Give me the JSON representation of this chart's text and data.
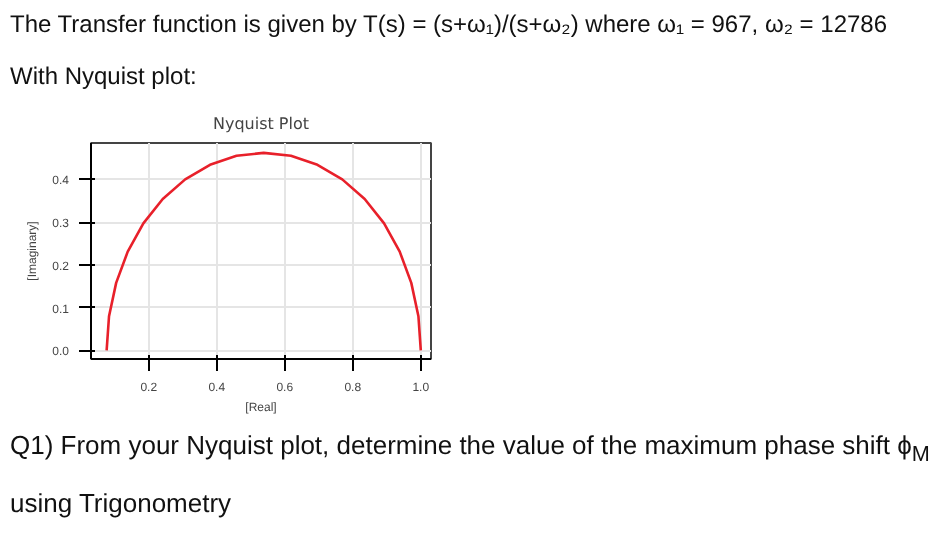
{
  "chart_data": {
    "type": "line",
    "title": "Nyquist Plot",
    "xlabel": "[Real]",
    "ylabel": "[Imaginary]",
    "annotations": [
      "The Transfer function is given by T(s) = (s+ω₁)/(s+ω₂)  where ω₁ = 967,  ω₂ = 12786",
      "With Nyquist plot:",
      "Q1) From your Nyquist plot, determine the value of the maximum phase shift ϕ$_{M}$ using Trigonometry"
    ],
    "x": [
      0.076,
      0.083,
      0.104,
      0.138,
      0.184,
      0.241,
      0.307,
      0.38,
      0.458,
      0.538,
      0.618,
      0.696,
      0.769,
      0.835,
      0.892,
      0.938,
      0.972,
      0.993,
      1.0
    ],
    "series": [
      {
        "color": "#e8202a",
        "values": [
          0.0,
          0.08,
          0.158,
          0.231,
          0.297,
          0.354,
          0.4,
          0.434,
          0.455,
          0.462,
          0.455,
          0.434,
          0.4,
          0.354,
          0.297,
          0.231,
          0.158,
          0.08,
          0.0
        ]
      }
    ],
    "xlim": [
      0.03,
      1.03
    ],
    "ylim": [
      -0.02,
      0.485
    ],
    "xticks": [
      0.2,
      0.4,
      0.6,
      0.8,
      {
        "value": 1.0,
        "label": "1.0"
      }
    ],
    "yticks": [
      {
        "value": 0.0,
        "label": "0.0"
      },
      0.1,
      0.2,
      0.3,
      0.4
    ],
    "grid": true,
    "marker": "none",
    "line_style": "solid"
  }
}
